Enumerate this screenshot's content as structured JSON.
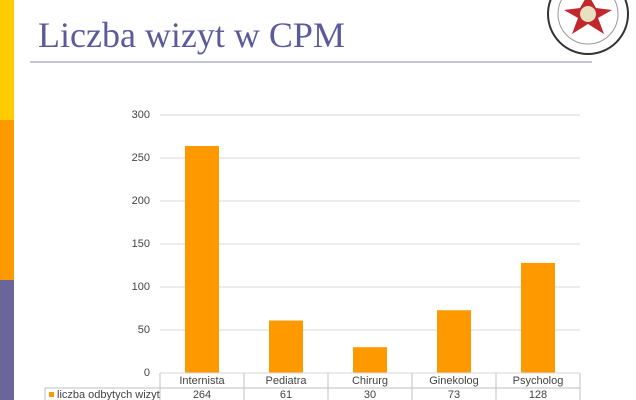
{
  "chart_data": {
    "type": "bar",
    "title": "Liczba wizyt w CPM",
    "categories": [
      "Internista",
      "Pediatra",
      "Chirurg",
      "Ginekolog",
      "Psycholog"
    ],
    "series": [
      {
        "name": "liczba odbytych wizyt",
        "color": "#ff9900",
        "values": [
          264,
          61,
          30,
          73,
          128
        ]
      }
    ],
    "ylim": [
      0,
      300
    ],
    "yticks": [
      0,
      50,
      100,
      150,
      200,
      250,
      300
    ],
    "grid": true
  }
}
